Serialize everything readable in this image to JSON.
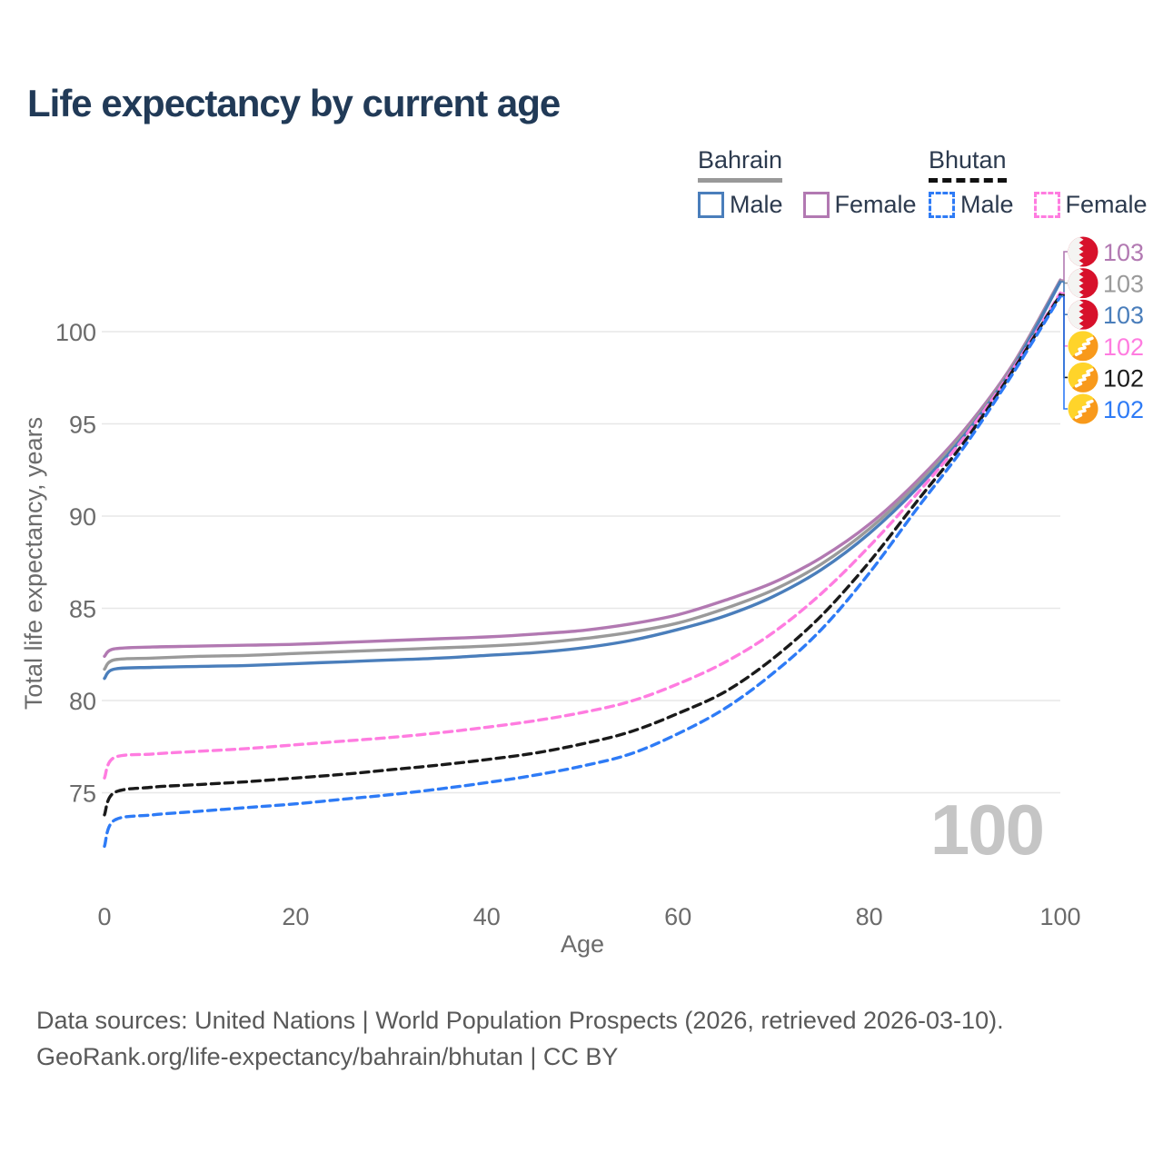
{
  "header": {
    "title": "Life expectancy by current age"
  },
  "legend": {
    "groups": [
      {
        "label": "Bahrain",
        "line_style": "solid",
        "underline_color": "#999999",
        "items": [
          {
            "label": "Male",
            "color": "#4a7ebb"
          },
          {
            "label": "Female",
            "color": "#b279b2"
          }
        ]
      },
      {
        "label": "Bhutan",
        "line_style": "dashed",
        "underline_color": "#111111",
        "items": [
          {
            "label": "Male",
            "color": "#2e7bf6"
          },
          {
            "label": "Female",
            "color": "#ff7ce0"
          }
        ]
      }
    ]
  },
  "chart_data": {
    "type": "line",
    "title": "Life expectancy by current age",
    "xlabel": "Age",
    "ylabel": "Total life expectancy, years",
    "xticks": [
      0,
      20,
      40,
      60,
      80,
      100
    ],
    "yticks": [
      75,
      80,
      85,
      90,
      95,
      100
    ],
    "xlim": [
      0,
      100
    ],
    "ylim": [
      72.5,
      100
    ],
    "grid": "horizontal-only",
    "legend_position": "top-right",
    "age_counter": "100",
    "axis_color": "#6b6b6b",
    "grid_color": "#e7e7e7",
    "watermark_color": "#c5c5c5",
    "x": [
      0,
      1,
      5,
      10,
      15,
      20,
      25,
      30,
      35,
      40,
      45,
      50,
      55,
      60,
      65,
      70,
      75,
      80,
      85,
      90,
      95,
      100
    ],
    "series": [
      {
        "name": "Bahrain Female",
        "country": "bahrain",
        "sex": "female",
        "color": "#b279b2",
        "dash": "none",
        "end_label": "103",
        "values": [
          82.4,
          82.8,
          82.9,
          82.95,
          83.0,
          83.05,
          83.15,
          83.25,
          83.35,
          83.45,
          83.6,
          83.8,
          84.15,
          84.65,
          85.45,
          86.4,
          87.75,
          89.55,
          91.9,
          94.7,
          98.2,
          102.8
        ]
      },
      {
        "name": "Bahrain Total",
        "country": "bahrain",
        "sex": "total",
        "color": "#9a9a9a",
        "dash": "none",
        "end_label": "103",
        "values": [
          81.7,
          82.2,
          82.3,
          82.4,
          82.45,
          82.55,
          82.65,
          82.75,
          82.85,
          82.95,
          83.1,
          83.35,
          83.7,
          84.2,
          85.0,
          86.0,
          87.4,
          89.3,
          91.7,
          94.55,
          98.1,
          102.75
        ]
      },
      {
        "name": "Bahrain Male",
        "country": "bahrain",
        "sex": "male",
        "color": "#4a7ebb",
        "dash": "none",
        "end_label": "103",
        "values": [
          81.2,
          81.7,
          81.8,
          81.85,
          81.9,
          82.0,
          82.1,
          82.2,
          82.3,
          82.45,
          82.6,
          82.85,
          83.25,
          83.85,
          84.6,
          85.65,
          87.1,
          89.05,
          91.5,
          94.4,
          98.0,
          102.7
        ]
      },
      {
        "name": "Bhutan Female",
        "country": "bhutan",
        "sex": "female",
        "color": "#ff7ce0",
        "dash": "9 6",
        "end_label": "102",
        "values": [
          75.8,
          76.9,
          77.1,
          77.25,
          77.4,
          77.6,
          77.8,
          78.0,
          78.25,
          78.55,
          78.9,
          79.35,
          79.95,
          80.9,
          82.1,
          83.7,
          85.8,
          88.35,
          91.2,
          94.3,
          97.95,
          102.1
        ]
      },
      {
        "name": "Bhutan Total",
        "country": "bhutan",
        "sex": "total",
        "color": "#1a1a1a",
        "dash": "9 6",
        "end_label": "102",
        "values": [
          73.8,
          75.0,
          75.3,
          75.45,
          75.6,
          75.8,
          76.0,
          76.25,
          76.5,
          76.8,
          77.15,
          77.65,
          78.3,
          79.3,
          80.5,
          82.3,
          84.6,
          87.5,
          90.8,
          94.05,
          97.85,
          102.0
        ]
      },
      {
        "name": "Bhutan Male",
        "country": "bhutan",
        "sex": "male",
        "color": "#2e7bf6",
        "dash": "9 6",
        "end_label": "102",
        "values": [
          72.1,
          73.5,
          73.8,
          74.0,
          74.2,
          74.4,
          74.65,
          74.9,
          75.2,
          75.55,
          75.95,
          76.45,
          77.1,
          78.2,
          79.6,
          81.5,
          83.85,
          86.9,
          90.4,
          93.8,
          97.7,
          101.9
        ]
      }
    ],
    "flag_colors": {
      "bahrain_red": "#d7112b",
      "bahrain_white": "#f4f4f2",
      "bhutan_yellow": "#ffd42a",
      "bhutan_orange": "#f8991b",
      "bhutan_dragon": "#ffffff"
    }
  },
  "footer": {
    "line1": "Data sources: United Nations | World Population Prospects (2026, retrieved 2026-03-10).",
    "line2": "GeoRank.org/life-expectancy/bahrain/bhutan | CC BY"
  }
}
